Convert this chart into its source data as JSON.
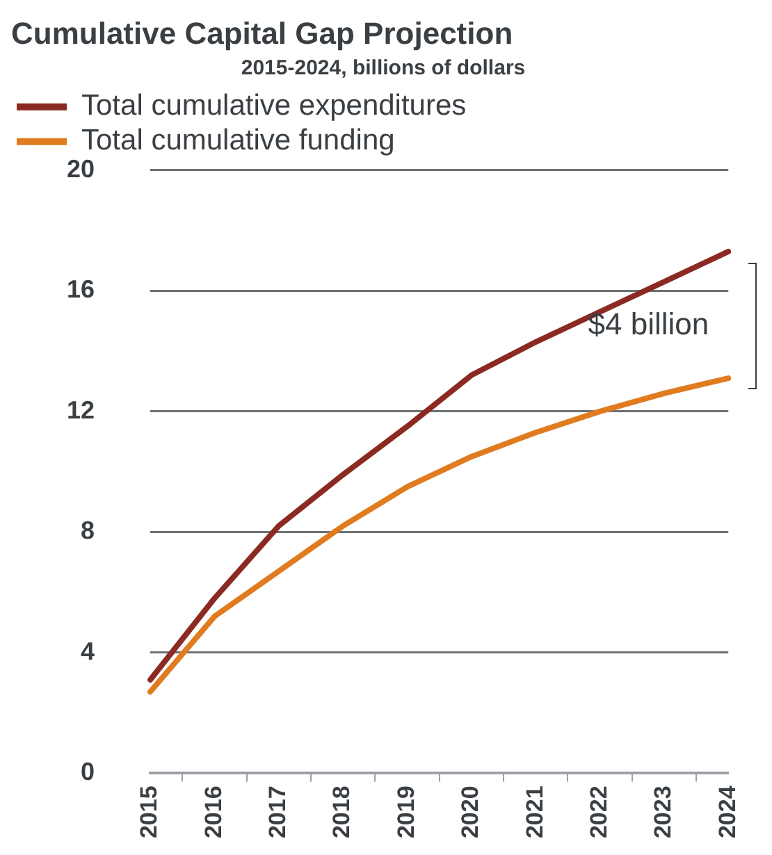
{
  "chart_data": {
    "type": "line",
    "title": "Cumulative Capital Gap Projection",
    "subtitle": "2015-2024, billions of dollars",
    "categories": [
      "2015",
      "2016",
      "2017",
      "2018",
      "2019",
      "2020",
      "2021",
      "2022",
      "2023",
      "2024"
    ],
    "series": [
      {
        "name": "Total cumulative expenditures",
        "color": "#8b2a22",
        "values": [
          3.1,
          5.8,
          8.2,
          9.9,
          11.5,
          13.2,
          14.3,
          15.3,
          16.3,
          17.3
        ]
      },
      {
        "name": "Total cumulative funding",
        "color": "#e07b20",
        "values": [
          2.7,
          5.2,
          6.7,
          8.2,
          9.5,
          10.5,
          11.3,
          12.0,
          12.6,
          13.1
        ]
      }
    ],
    "ylim": [
      0,
      20
    ],
    "yticks": [
      0,
      4,
      8,
      12,
      16,
      20
    ],
    "grid": "y",
    "legend": "top left",
    "marker": "none",
    "line_style": "solid",
    "annotations": [
      "$4 billion"
    ]
  }
}
